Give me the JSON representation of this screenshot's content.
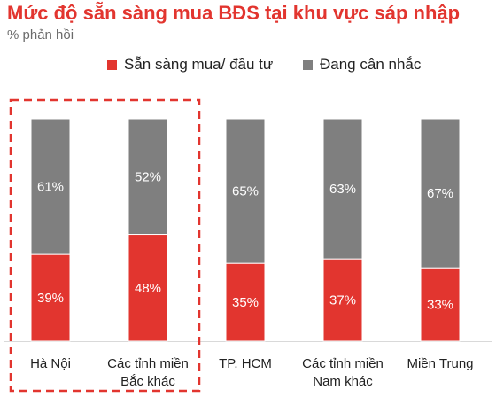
{
  "title": "Mức độ sẵn sàng mua BĐS tại khu vực sáp nhập",
  "subtitle": "% phản hồi",
  "colors": {
    "ready": "#e2352f",
    "considering": "#7f7f7f",
    "highlight": "#e2352f"
  },
  "chart_data": {
    "type": "bar",
    "stacked": true,
    "categories": [
      [
        "Hà Nội"
      ],
      [
        "Các tỉnh miền",
        "Bắc khác"
      ],
      [
        "TP. HCM"
      ],
      [
        "Các tỉnh miền",
        "Nam khác"
      ],
      [
        "Miền Trung"
      ]
    ],
    "series": [
      {
        "name": "Sẵn sàng mua/ đầu tư",
        "values": [
          39,
          48,
          35,
          37,
          33
        ],
        "labels": [
          "39%",
          "48%",
          "35%",
          "37%",
          "33%"
        ]
      },
      {
        "name": "Đang cân nhắc",
        "values": [
          61,
          52,
          65,
          63,
          67
        ],
        "labels": [
          "61%",
          "52%",
          "65%",
          "63%",
          "67%"
        ]
      }
    ],
    "ylim": [
      0,
      100
    ],
    "grid": false,
    "legend": "top",
    "highlighted_categories": [
      0,
      1
    ]
  }
}
